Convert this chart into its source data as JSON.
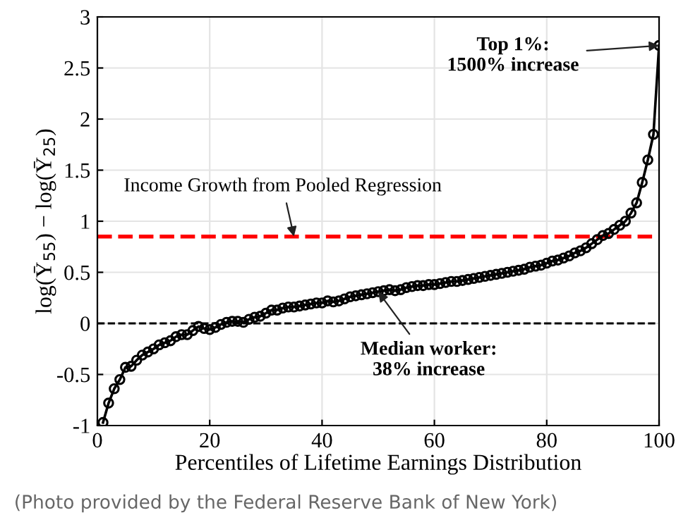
{
  "chart_data": {
    "type": "line",
    "xlabel": "Percentiles of Lifetime Earnings Distribution",
    "ylabel": "log(Ȳ$_{55}$) − log(Ȳ$_{25}$)",
    "x": [
      1,
      2,
      3,
      4,
      5,
      6,
      7,
      8,
      9,
      10,
      11,
      12,
      13,
      14,
      15,
      16,
      17,
      18,
      19,
      20,
      21,
      22,
      23,
      24,
      25,
      26,
      27,
      28,
      29,
      30,
      31,
      32,
      33,
      34,
      35,
      36,
      37,
      38,
      39,
      40,
      41,
      42,
      43,
      44,
      45,
      46,
      47,
      48,
      49,
      50,
      51,
      52,
      53,
      54,
      55,
      56,
      57,
      58,
      59,
      60,
      61,
      62,
      63,
      64,
      65,
      66,
      67,
      68,
      69,
      70,
      71,
      72,
      73,
      74,
      75,
      76,
      77,
      78,
      79,
      80,
      81,
      82,
      83,
      84,
      85,
      86,
      87,
      88,
      89,
      90,
      91,
      92,
      93,
      94,
      95,
      96,
      97,
      98,
      99,
      100
    ],
    "series": [
      {
        "color": "#000000",
        "values": [
          -0.97,
          -0.78,
          -0.64,
          -0.55,
          -0.43,
          -0.42,
          -0.36,
          -0.31,
          -0.28,
          -0.25,
          -0.21,
          -0.19,
          -0.17,
          -0.13,
          -0.11,
          -0.11,
          -0.07,
          -0.03,
          -0.05,
          -0.06,
          -0.04,
          -0.01,
          0.01,
          0.02,
          0.02,
          0.01,
          0.04,
          0.06,
          0.07,
          0.1,
          0.13,
          0.13,
          0.15,
          0.16,
          0.16,
          0.17,
          0.18,
          0.19,
          0.2,
          0.2,
          0.22,
          0.21,
          0.22,
          0.24,
          0.26,
          0.27,
          0.28,
          0.29,
          0.3,
          0.31,
          0.32,
          0.33,
          0.32,
          0.33,
          0.35,
          0.36,
          0.37,
          0.37,
          0.38,
          0.38,
          0.39,
          0.4,
          0.41,
          0.41,
          0.42,
          0.43,
          0.44,
          0.45,
          0.46,
          0.47,
          0.48,
          0.49,
          0.5,
          0.51,
          0.52,
          0.53,
          0.55,
          0.56,
          0.57,
          0.59,
          0.61,
          0.62,
          0.64,
          0.66,
          0.69,
          0.71,
          0.74,
          0.78,
          0.82,
          0.86,
          0.88,
          0.92,
          0.96,
          1.0,
          1.08,
          1.18,
          1.38,
          1.6,
          1.85,
          2.72
        ]
      }
    ],
    "xlim": [
      0,
      100
    ],
    "ylim": [
      -1,
      3
    ],
    "xticks": [
      0,
      20,
      40,
      60,
      80,
      100
    ],
    "yticks": [
      -1,
      -0.5,
      0,
      0.5,
      1,
      1.5,
      2,
      2.5,
      3
    ],
    "grid": true,
    "marker": "circle",
    "line_style": "solid",
    "ref_lines": [
      {
        "axis": "y",
        "value": 0.85,
        "color": "#ff0000",
        "line_style": "dashed"
      },
      {
        "axis": "y",
        "value": 0,
        "color": "#000000",
        "line_style": "dashed"
      }
    ],
    "annotations": [
      {
        "text": "Income Growth from Pooled Regression",
        "x": 35,
        "y": 0.85
      },
      {
        "text": "Top 1%:\n1500% increase",
        "x": 100,
        "y": 2.72
      },
      {
        "text": "Median worker:\n38% increase",
        "x": 50,
        "y": 0.31
      },
      "(Photo provided by the Federal Reserve Bank of New York)"
    ]
  }
}
